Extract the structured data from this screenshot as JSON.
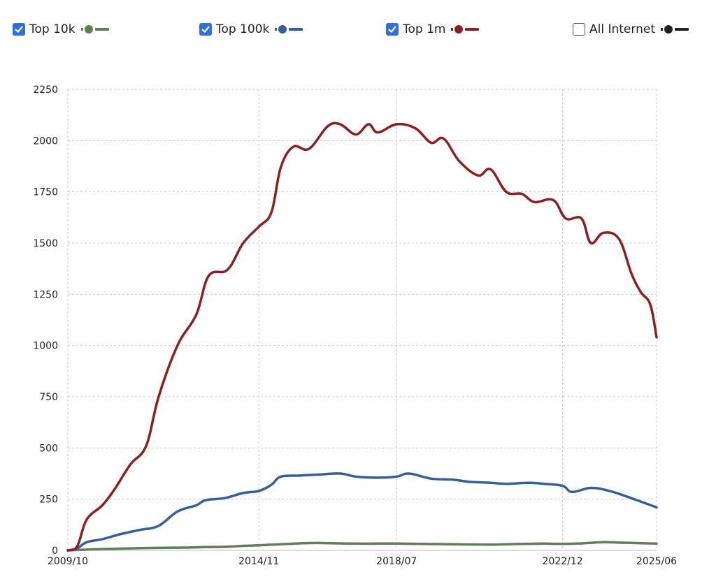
{
  "legend": {
    "items": [
      {
        "label": "Top 10k",
        "checked": true,
        "color": "#5f7f56"
      },
      {
        "label": "Top 100k",
        "checked": true,
        "color": "#33609a"
      },
      {
        "label": "Top 1m",
        "checked": true,
        "color": "#8c1f1f"
      },
      {
        "label": "All Internet",
        "checked": false,
        "color": "#222222"
      }
    ]
  },
  "chart_data": {
    "type": "line",
    "title": "",
    "xlabel": "",
    "ylabel": "",
    "x_range": [
      "2009-10",
      "2025-06"
    ],
    "ylim": [
      0,
      2250
    ],
    "yticks": [
      0,
      250,
      500,
      750,
      1000,
      1250,
      1500,
      1750,
      2000,
      2250
    ],
    "xticks": [
      "2009/10",
      "2014/11",
      "2018/07",
      "2022/12",
      "2025/06"
    ],
    "grid": true,
    "legend_position": "top",
    "series": [
      {
        "name": "Top 10k",
        "color": "#5f7f56",
        "points": [
          [
            "2009-10",
            0
          ],
          [
            "2010-01",
            2
          ],
          [
            "2010-06",
            5
          ],
          [
            "2011-01",
            8
          ],
          [
            "2011-06",
            10
          ],
          [
            "2012-01",
            12
          ],
          [
            "2012-06",
            13
          ],
          [
            "2013-01",
            14
          ],
          [
            "2013-06",
            16
          ],
          [
            "2014-01",
            18
          ],
          [
            "2014-06",
            22
          ],
          [
            "2014-11",
            25
          ],
          [
            "2015-06",
            30
          ],
          [
            "2016-01",
            35
          ],
          [
            "2016-06",
            36
          ],
          [
            "2017-01",
            34
          ],
          [
            "2017-06",
            33
          ],
          [
            "2018-01",
            33
          ],
          [
            "2018-07",
            33
          ],
          [
            "2019-01",
            32
          ],
          [
            "2019-06",
            31
          ],
          [
            "2020-01",
            30
          ],
          [
            "2020-06",
            29
          ],
          [
            "2021-01",
            28
          ],
          [
            "2021-06",
            30
          ],
          [
            "2022-01",
            32
          ],
          [
            "2022-06",
            33
          ],
          [
            "2022-12",
            32
          ],
          [
            "2023-06",
            34
          ],
          [
            "2024-01",
            40
          ],
          [
            "2024-06",
            38
          ],
          [
            "2025-01",
            35
          ],
          [
            "2025-06",
            33
          ]
        ]
      },
      {
        "name": "Top 100k",
        "color": "#33609a",
        "points": [
          [
            "2009-10",
            0
          ],
          [
            "2010-01",
            10
          ],
          [
            "2010-04",
            40
          ],
          [
            "2010-09",
            55
          ],
          [
            "2011-03",
            80
          ],
          [
            "2011-09",
            100
          ],
          [
            "2012-03",
            120
          ],
          [
            "2012-09",
            190
          ],
          [
            "2013-03",
            220
          ],
          [
            "2013-06",
            245
          ],
          [
            "2013-12",
            255
          ],
          [
            "2014-06",
            280
          ],
          [
            "2014-11",
            290
          ],
          [
            "2015-03",
            320
          ],
          [
            "2015-06",
            360
          ],
          [
            "2015-12",
            365
          ],
          [
            "2016-06",
            370
          ],
          [
            "2017-01",
            375
          ],
          [
            "2017-06",
            360
          ],
          [
            "2018-01",
            355
          ],
          [
            "2018-07",
            360
          ],
          [
            "2018-11",
            375
          ],
          [
            "2019-06",
            350
          ],
          [
            "2020-01",
            345
          ],
          [
            "2020-06",
            335
          ],
          [
            "2021-01",
            330
          ],
          [
            "2021-06",
            325
          ],
          [
            "2022-01",
            330
          ],
          [
            "2022-06",
            325
          ],
          [
            "2022-12",
            315
          ],
          [
            "2023-03",
            285
          ],
          [
            "2023-09",
            305
          ],
          [
            "2024-03",
            290
          ],
          [
            "2024-09",
            260
          ],
          [
            "2025-06",
            210
          ]
        ]
      },
      {
        "name": "Top 1m",
        "color": "#8c1f1f",
        "points": [
          [
            "2009-10",
            0
          ],
          [
            "2010-01",
            20
          ],
          [
            "2010-04",
            150
          ],
          [
            "2010-09",
            220
          ],
          [
            "2011-01",
            300
          ],
          [
            "2011-06",
            420
          ],
          [
            "2011-11",
            510
          ],
          [
            "2012-03",
            750
          ],
          [
            "2012-09",
            1000
          ],
          [
            "2013-03",
            1150
          ],
          [
            "2013-07",
            1340
          ],
          [
            "2014-01",
            1370
          ],
          [
            "2014-06",
            1500
          ],
          [
            "2014-11",
            1580
          ],
          [
            "2015-03",
            1650
          ],
          [
            "2015-06",
            1870
          ],
          [
            "2015-10",
            1970
          ],
          [
            "2016-03",
            1960
          ],
          [
            "2016-09",
            2070
          ],
          [
            "2017-01",
            2080
          ],
          [
            "2017-06",
            2030
          ],
          [
            "2017-10",
            2080
          ],
          [
            "2018-01",
            2040
          ],
          [
            "2018-07",
            2080
          ],
          [
            "2019-01",
            2060
          ],
          [
            "2019-06",
            1990
          ],
          [
            "2019-10",
            2010
          ],
          [
            "2020-03",
            1900
          ],
          [
            "2020-09",
            1830
          ],
          [
            "2021-01",
            1860
          ],
          [
            "2021-06",
            1750
          ],
          [
            "2021-11",
            1740
          ],
          [
            "2022-03",
            1700
          ],
          [
            "2022-09",
            1710
          ],
          [
            "2023-01",
            1620
          ],
          [
            "2023-06",
            1620
          ],
          [
            "2023-09",
            1500
          ],
          [
            "2024-01",
            1550
          ],
          [
            "2024-06",
            1520
          ],
          [
            "2024-10",
            1350
          ],
          [
            "2025-01",
            1260
          ],
          [
            "2025-04",
            1200
          ],
          [
            "2025-06",
            1040
          ]
        ]
      }
    ]
  }
}
